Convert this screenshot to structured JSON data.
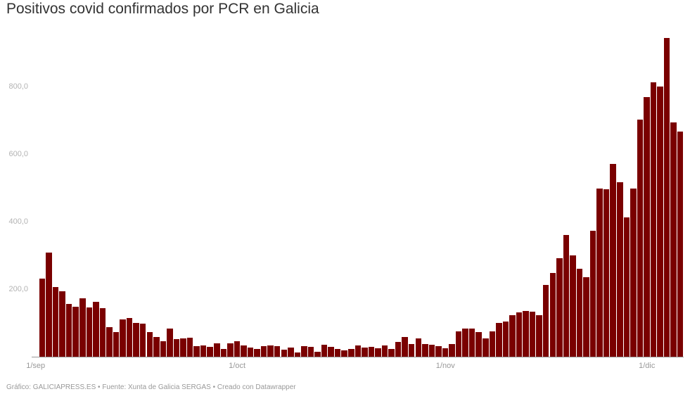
{
  "title": "Positivos covid confirmados por PCR en Galicia",
  "footer": "Gráfico: GALICIAPRESS.ES • Fuente: Xunta de Galicia SERGAS • Creado con Datawrapper",
  "colors": {
    "bar": "#7a0000",
    "axis_text": "#999999",
    "title": "#333333"
  },
  "y_ticks": [
    {
      "label": "800,0",
      "value": 800
    },
    {
      "label": "600,0",
      "value": 600
    },
    {
      "label": "400,0",
      "value": 400
    },
    {
      "label": "200,0",
      "value": 200
    }
  ],
  "x_ticks": [
    {
      "label": "1/sep",
      "index": 0
    },
    {
      "label": "1/oct",
      "index": 30
    },
    {
      "label": "1/nov",
      "index": 61
    },
    {
      "label": "1/dic",
      "index": 91
    }
  ],
  "chart_data": {
    "type": "bar",
    "title": "Positivos covid confirmados por PCR en Galicia",
    "xlabel": "",
    "ylabel": "",
    "x_start": "1/sep",
    "x_end": "5/dic",
    "x_tick_labels": [
      "1/sep",
      "1/oct",
      "1/nov",
      "1/dic"
    ],
    "y_tick_labels": [
      "200,0",
      "400,0",
      "600,0",
      "800,0"
    ],
    "ylim": [
      0,
      960
    ],
    "grid": false,
    "legend": null,
    "series": [
      {
        "name": "Positivos PCR",
        "values": [
          233,
          310,
          208,
          196,
          158,
          150,
          175,
          148,
          164,
          146,
          90,
          75,
          113,
          117,
          103,
          99,
          76,
          61,
          48,
          86,
          54,
          57,
          58,
          33,
          35,
          32,
          41,
          24,
          41,
          47,
          36,
          29,
          25,
          33,
          35,
          34,
          23,
          30,
          14,
          34,
          32,
          16,
          38,
          31,
          26,
          21,
          24,
          35,
          30,
          32,
          28,
          35,
          25,
          46,
          60,
          39,
          57,
          39,
          37,
          33,
          28,
          39,
          77,
          86,
          85,
          74,
          56,
          77,
          102,
          107,
          124,
          133,
          137,
          136,
          124,
          215,
          249,
          294,
          362,
          303,
          262,
          238,
          374,
          501,
          497,
          572,
          518,
          415,
          499,
          704,
          771,
          814,
          803,
          945,
          695,
          669
        ]
      }
    ],
    "source": "Xunta de Galicia SERGAS"
  }
}
